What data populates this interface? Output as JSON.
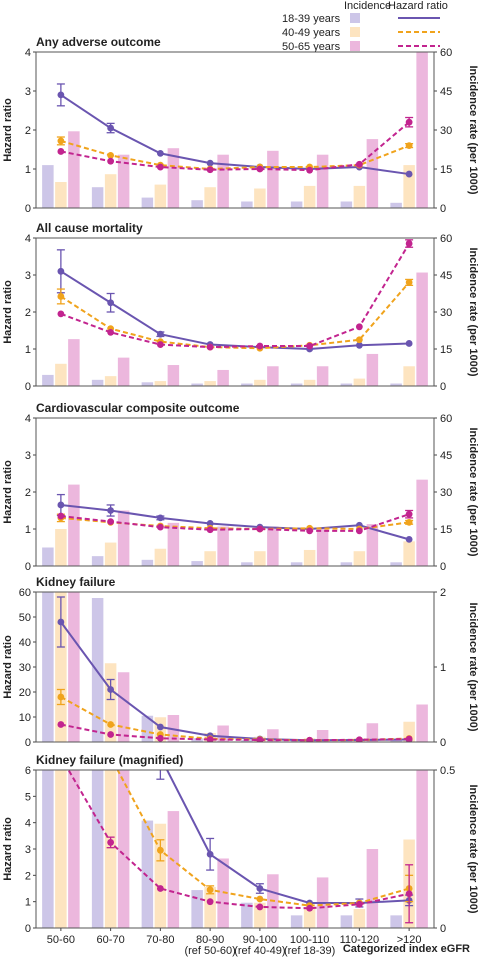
{
  "legend": {
    "incidence_header": "Incidence",
    "hazard_header": "Hazard ratio",
    "groups": [
      {
        "label": "18-39 years",
        "bar_color": "#cdc6e8",
        "line_color": "#6a55b0",
        "dash": false
      },
      {
        "label": "40-49 years",
        "bar_color": "#fde4c0",
        "line_color": "#f0a31c",
        "dash": true
      },
      {
        "label": "50-65 years",
        "bar_color": "#ecb7dd",
        "line_color": "#c2248f",
        "dash": true
      }
    ]
  },
  "xlabel": "Categorized index eGFR",
  "categories": [
    "50-60",
    "60-70",
    "70-80",
    "80-90",
    "90-100",
    "100-110",
    "110-120",
    ">120"
  ],
  "category_sublabels": [
    "",
    "",
    "",
    "(ref 50-60)",
    "(ref 40-49)",
    "(ref 18-39)",
    "",
    ""
  ],
  "chart_data": [
    {
      "type": "bar",
      "title": "Any adverse outcome",
      "ylabel": "Hazard ratio",
      "y2label": "Incidence rate (per 1000)",
      "ylim": [
        0,
        4
      ],
      "yticks": [
        "0",
        "1",
        "2",
        "3",
        "4"
      ],
      "y2lim": [
        0,
        60
      ],
      "y2ticks": [
        "0",
        "15",
        "30",
        "45",
        "60"
      ],
      "bars": [
        [
          16.5,
          8,
          4,
          3,
          2.5,
          2.5,
          2.5,
          2
        ],
        [
          10,
          13,
          9,
          8,
          7.5,
          8.5,
          8.5,
          16.5
        ],
        [
          29.5,
          20.5,
          23,
          20.5,
          22,
          20.5,
          26.5,
          60
        ]
      ],
      "lines": [
        [
          2.9,
          2.05,
          1.4,
          1.15,
          1.05,
          1.0,
          1.05,
          0.87
        ],
        [
          1.72,
          1.35,
          1.1,
          1.0,
          1.05,
          1.05,
          1.1,
          1.6
        ],
        [
          1.45,
          1.2,
          1.05,
          0.98,
          1.0,
          0.97,
          1.12,
          2.2
        ]
      ],
      "errors": [
        [
          0.28,
          0.12,
          0,
          0,
          0,
          0,
          0,
          0
        ],
        [
          0.1,
          0,
          0,
          0,
          0,
          0,
          0,
          0.05
        ],
        [
          0,
          0,
          0,
          0,
          0,
          0,
          0,
          0.12
        ]
      ]
    },
    {
      "type": "bar",
      "title": "All cause mortality",
      "ylabel": "Hazard ratio",
      "y2label": "Incidence rate (per 1000)",
      "ylim": [
        0,
        4
      ],
      "yticks": [
        "0",
        "1",
        "2",
        "3",
        "4"
      ],
      "y2lim": [
        0,
        60
      ],
      "y2ticks": [
        "0",
        "15",
        "30",
        "45",
        "60"
      ],
      "bars": [
        [
          4.5,
          2.5,
          1.5,
          1,
          1,
          1,
          1,
          1
        ],
        [
          9,
          4,
          2,
          2,
          2.5,
          2.5,
          3,
          8
        ],
        [
          19,
          11.5,
          8.5,
          6.5,
          8,
          8,
          13,
          46
        ]
      ],
      "lines": [
        [
          3.1,
          2.25,
          1.4,
          1.12,
          1.05,
          1.0,
          1.1,
          1.15
        ],
        [
          2.42,
          1.55,
          1.2,
          1.05,
          1.02,
          1.1,
          1.25,
          2.8
        ],
        [
          1.95,
          1.45,
          1.12,
          1.05,
          1.08,
          1.08,
          1.6,
          3.85
        ]
      ],
      "errors": [
        [
          0.58,
          0.25,
          0.06,
          0,
          0,
          0,
          0,
          0
        ],
        [
          0.2,
          0,
          0,
          0,
          0,
          0,
          0,
          0.08
        ],
        [
          0,
          0,
          0,
          0,
          0,
          0,
          0,
          0.1
        ]
      ]
    },
    {
      "type": "bar",
      "title": "Cardiovascular composite outcome",
      "ylabel": "Hazard ratio",
      "y2label": "Incidence rate (per 1000)",
      "ylim": [
        0,
        4
      ],
      "yticks": [
        "0",
        "1",
        "2",
        "3",
        "4"
      ],
      "y2lim": [
        0,
        60
      ],
      "y2ticks": [
        "0",
        "15",
        "30",
        "45",
        "60"
      ],
      "bars": [
        [
          7.5,
          4,
          2.5,
          2,
          1.5,
          1.5,
          1.5,
          1.5
        ],
        [
          15,
          9.5,
          7,
          6,
          6,
          6.5,
          6,
          10
        ],
        [
          33,
          22.5,
          17.5,
          16,
          16,
          15,
          17,
          35
        ]
      ],
      "lines": [
        [
          1.65,
          1.5,
          1.3,
          1.15,
          1.05,
          1.0,
          1.1,
          0.72
        ],
        [
          1.3,
          1.18,
          1.08,
          1.02,
          1.0,
          1.02,
          1.0,
          1.18
        ],
        [
          1.35,
          1.2,
          1.05,
          0.98,
          1.0,
          0.95,
          0.95,
          1.4
        ]
      ],
      "errors": [
        [
          0.28,
          0.15,
          0.05,
          0,
          0,
          0,
          0,
          0
        ],
        [
          0.1,
          0,
          0,
          0,
          0,
          0,
          0,
          0.05
        ],
        [
          0,
          0,
          0,
          0,
          0,
          0,
          0,
          0.1
        ]
      ]
    },
    {
      "type": "bar",
      "title": "Kidney failure",
      "ylabel": "Hazard ratio",
      "y2label": "Incidence rate (per 1000)",
      "ylim": [
        0,
        60
      ],
      "yticks": [
        "0",
        "10",
        "20",
        "30",
        "40",
        "50",
        "60"
      ],
      "y2lim": [
        0,
        2
      ],
      "y2ticks": [
        "0",
        "1",
        "2"
      ],
      "bars": [
        [
          2.0,
          1.92,
          0.35,
          0.05,
          0.03,
          0.02,
          0.02,
          0.02
        ],
        [
          2.0,
          1.05,
          0.33,
          0.12,
          0.07,
          0.05,
          0.05,
          0.27
        ],
        [
          2.0,
          0.93,
          0.36,
          0.22,
          0.17,
          0.16,
          0.25,
          0.5
        ]
      ],
      "lines": [
        [
          48,
          21,
          6,
          2.5,
          1.2,
          0.7,
          0.8,
          1.0
        ],
        [
          18,
          7,
          3,
          1.3,
          1.0,
          0.7,
          0.8,
          1.4
        ],
        [
          7,
          3,
          1.5,
          1.0,
          0.8,
          0.7,
          0.9,
          1.2
        ]
      ],
      "errors": [
        [
          10,
          4,
          0,
          0,
          0,
          0,
          0,
          0
        ],
        [
          3,
          0,
          0,
          0,
          0,
          0,
          0,
          0
        ],
        [
          0,
          0,
          0,
          0,
          0,
          0,
          0,
          0
        ]
      ]
    },
    {
      "type": "bar",
      "title": "Kidney failure (magnified)",
      "ylabel": "Hazard ratio",
      "y2label": "Incidence rate (per 1000)",
      "ylim": [
        0,
        6
      ],
      "yticks": [
        "0",
        "1",
        "2",
        "3",
        "4",
        "5",
        "6"
      ],
      "y2lim": [
        0,
        0.5
      ],
      "y2ticks": [
        "0",
        "0.5"
      ],
      "bars": [
        [
          0.5,
          0.5,
          0.34,
          0.12,
          0.08,
          0.04,
          0.04,
          0.04
        ],
        [
          0.5,
          0.5,
          0.33,
          0.13,
          0.08,
          0.06,
          0.06,
          0.28
        ],
        [
          0.5,
          0.5,
          0.37,
          0.22,
          0.17,
          0.16,
          0.25,
          0.5
        ]
      ],
      "lines": [
        [
          6.5,
          6.5,
          6.5,
          2.8,
          1.5,
          0.95,
          0.95,
          1.05
        ],
        [
          6.5,
          6.5,
          2.95,
          1.45,
          1.1,
          0.85,
          0.95,
          1.5
        ],
        [
          6.5,
          3.25,
          1.5,
          1.0,
          0.8,
          0.75,
          0.9,
          1.3
        ]
      ],
      "errors": [
        [
          0,
          0,
          0.85,
          0.6,
          0.18,
          0,
          0.15,
          0.2
        ],
        [
          0,
          0,
          0.4,
          0.15,
          0,
          0,
          0,
          0.5
        ],
        [
          0,
          0.2,
          0,
          0,
          0,
          0,
          0,
          1.1
        ]
      ]
    }
  ]
}
